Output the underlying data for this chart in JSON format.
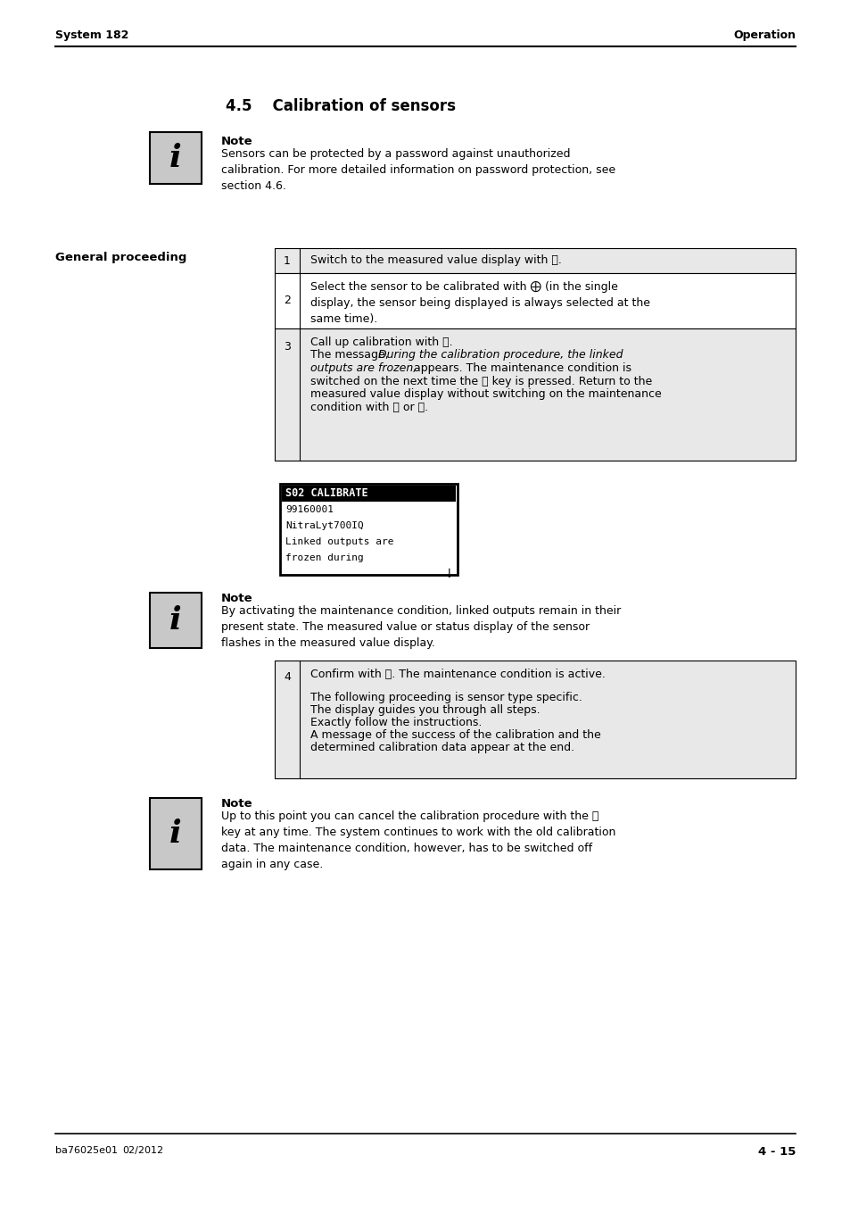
{
  "header_left": "System 182",
  "header_right": "Operation",
  "footer_left": "ba76025e01",
  "footer_date": "02/2012",
  "footer_right": "4 - 15",
  "section_title": "4.5    Calibration of sensors",
  "note1_title": "Note",
  "note1_text": "Sensors can be protected by a password against unauthorized\ncalibration. For more detailed information on password protection, see\nsection 4.6.",
  "general_proceeding_label": "General proceeding",
  "row1_text": "Switch to the measured value display with Ⓜ.",
  "row2_text": "Select the sensor to be calibrated with ⨁ (in the single\ndisplay, the sensor being displayed is always selected at the\nsame time).",
  "row3_line1": "Call up calibration with Ⓒ.",
  "row3_line2a": "The message, ",
  "row3_line2b_italic": "During the calibration procedure, the linked",
  "row3_line3_italic": "outputs are frozen,",
  "row3_line3b": " appears. The maintenance condition is",
  "row3_line4": "switched on the next time the ⒪ key is pressed. Return to the",
  "row3_line5": "measured value display without switching on the maintenance",
  "row3_line6": "condition with Ⓜ or Ⓔ.",
  "display_header": "S02 CALIBRATE",
  "display_lines": [
    "99160001",
    "NitraLyt700IQ",
    "Linked outputs are",
    "frozen during"
  ],
  "display_arrow": "↓",
  "note2_title": "Note",
  "note2_text": "By activating the maintenance condition, linked outputs remain in their\npresent state. The measured value or status display of the sensor\nflashes in the measured value display.",
  "row4_line1": "Confirm with ⒪. The maintenance condition is active.",
  "row4_line2": "The following proceeding is sensor type specific.",
  "row4_line3": "The display guides you through all steps.",
  "row4_line4": "Exactly follow the instructions.",
  "row4_line5": "A message of the success of the calibration and the",
  "row4_line6": "determined calibration data appear at the end.",
  "note3_title": "Note",
  "note3_text": "Up to this point you can cancel the calibration procedure with the Ⓔ\nkey at any time. The system continues to work with the old calibration\ndata. The maintenance condition, however, has to be switched off\nagain in any case.",
  "bg_color": "#ffffff",
  "row_odd_bg": "#e8e8e8",
  "row_even_bg": "#ffffff",
  "icon_bg": "#c8c8c8"
}
